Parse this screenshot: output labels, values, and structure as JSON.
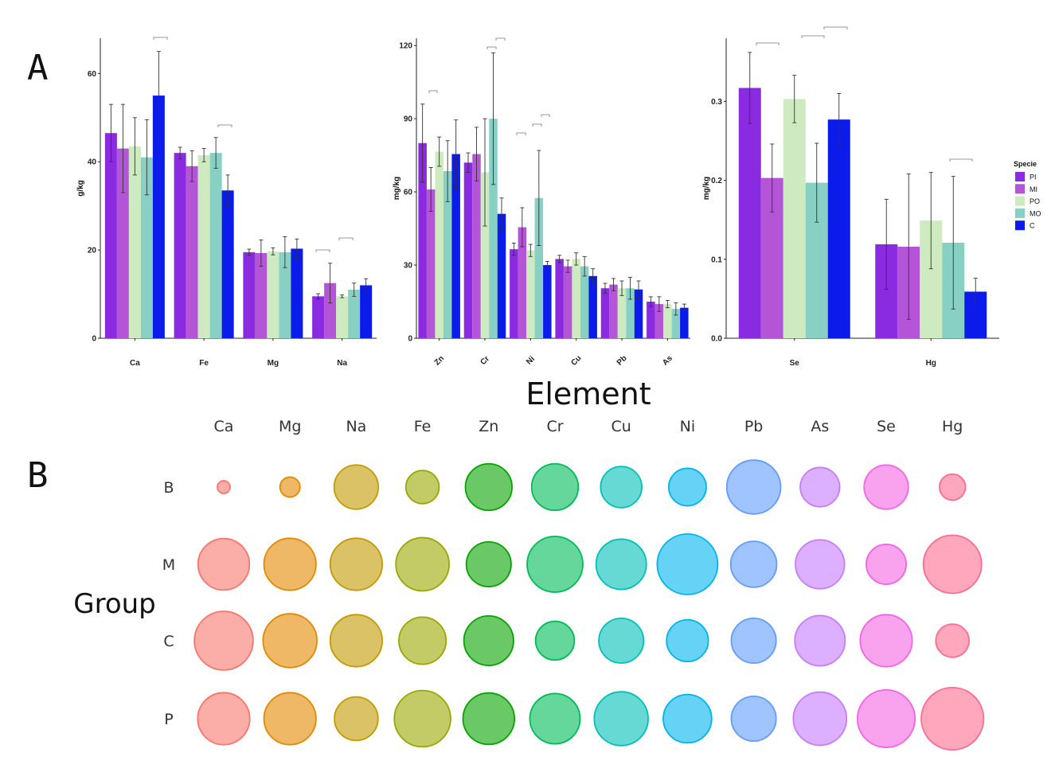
{
  "panel_a_label": "A",
  "panel_b_label": "B",
  "x_title": "Element",
  "legend": {
    "title": "Specie",
    "items": [
      {
        "name": "PI",
        "color": "#8a2be2"
      },
      {
        "name": "MI",
        "color": "#b455d8"
      },
      {
        "name": "PO",
        "color": "#cdeac0"
      },
      {
        "name": "MO",
        "color": "#88d0c4"
      },
      {
        "name": "C",
        "color": "#0a1bea"
      }
    ]
  },
  "chart_data": [
    {
      "type": "bar",
      "ylabel": "g/kg",
      "ylim": [
        0,
        68
      ],
      "yticks": [
        0,
        20,
        40,
        60
      ],
      "categories": [
        "Ca",
        "Fe",
        "Mg",
        "Na"
      ],
      "series": [
        {
          "name": "PI",
          "values": [
            46.5,
            42.0,
            19.5,
            9.5
          ],
          "errors": [
            6.5,
            1.3,
            0.7,
            0.6
          ]
        },
        {
          "name": "MI",
          "values": [
            43.0,
            39.0,
            19.3,
            12.5
          ],
          "errors": [
            10.0,
            3.5,
            3.0,
            4.5
          ]
        },
        {
          "name": "PO",
          "values": [
            43.5,
            41.5,
            19.7,
            9.5
          ],
          "errors": [
            6.5,
            1.5,
            0.8,
            0.3
          ]
        },
        {
          "name": "MO",
          "values": [
            41.0,
            42.0,
            19.5,
            11.0
          ],
          "errors": [
            8.5,
            3.5,
            3.5,
            1.5
          ]
        },
        {
          "name": "C",
          "values": [
            55.0,
            33.5,
            20.3,
            12.0
          ],
          "errors": [
            10.0,
            3.5,
            2.2,
            1.5
          ]
        }
      ]
    },
    {
      "type": "bar",
      "ylabel": "mg/kg",
      "ylim": [
        0,
        123
      ],
      "yticks": [
        0,
        30,
        60,
        90,
        120
      ],
      "categories": [
        "Zn",
        "Cr",
        "Ni",
        "Cu",
        "Pb",
        "As"
      ],
      "series": [
        {
          "name": "PI",
          "values": [
            80,
            72,
            36.5,
            32.5,
            20.5,
            15
          ],
          "errors": [
            16,
            4,
            2.5,
            1.5,
            2.0,
            2.0
          ]
        },
        {
          "name": "MI",
          "values": [
            61,
            75.5,
            45.5,
            29.5,
            22,
            14
          ],
          "errors": [
            9,
            11,
            8,
            2.5,
            2.5,
            3.0
          ]
        },
        {
          "name": "PO",
          "values": [
            76.5,
            68,
            36,
            32.5,
            20.5,
            14
          ],
          "errors": [
            6,
            22,
            2.5,
            2.5,
            3.0,
            1.5
          ]
        },
        {
          "name": "MO",
          "values": [
            68.5,
            90,
            57.5,
            29.5,
            20.5,
            12
          ],
          "errors": [
            12.5,
            27,
            19.5,
            4.0,
            4.5,
            2.5
          ]
        },
        {
          "name": "C",
          "values": [
            75.5,
            51,
            30,
            25.5,
            20,
            12.5
          ],
          "errors": [
            14,
            6.5,
            1.5,
            3.0,
            3.5,
            1.5
          ]
        }
      ]
    },
    {
      "type": "bar",
      "ylabel": "mg/kg",
      "ylim": [
        0,
        0.38
      ],
      "yticks": [
        0.0,
        0.1,
        0.2,
        0.3
      ],
      "categories": [
        "Se",
        "Hg"
      ],
      "series": [
        {
          "name": "PI",
          "values": [
            0.317,
            0.119
          ],
          "errors": [
            0.045,
            0.057
          ]
        },
        {
          "name": "MI",
          "values": [
            0.203,
            0.116
          ],
          "errors": [
            0.043,
            0.092
          ]
        },
        {
          "name": "PO",
          "values": [
            0.303,
            0.149
          ],
          "errors": [
            0.03,
            0.061
          ]
        },
        {
          "name": "MO",
          "values": [
            0.197,
            0.121
          ],
          "errors": [
            0.05,
            0.084
          ]
        },
        {
          "name": "C",
          "values": [
            0.277,
            0.059
          ],
          "errors": [
            0.033,
            0.017
          ]
        }
      ]
    },
    {
      "type": "bubble",
      "ylabel": "Group",
      "columns": [
        "Ca",
        "Mg",
        "Na",
        "Fe",
        "Zn",
        "Cr",
        "Cu",
        "Ni",
        "Pb",
        "As",
        "Se",
        "Hg"
      ],
      "rows": [
        "B",
        "M",
        "C",
        "P"
      ],
      "colors": [
        "#f8766d",
        "#e38900",
        "#c49a00",
        "#99a800",
        "#06a400",
        "#00bc56",
        "#00c0b8",
        "#00b4ef",
        "#619cff",
        "#c77cff",
        "#f564e3",
        "#ff6c91"
      ],
      "sizes": [
        [
          0.21,
          0.33,
          0.73,
          0.55,
          0.77,
          0.77,
          0.68,
          0.62,
          0.89,
          0.65,
          0.73,
          0.43
        ],
        [
          0.85,
          0.86,
          0.86,
          0.88,
          0.74,
          0.92,
          0.83,
          1.0,
          0.76,
          0.81,
          0.66,
          0.96
        ],
        [
          0.97,
          0.89,
          0.86,
          0.78,
          0.82,
          0.64,
          0.74,
          0.69,
          0.74,
          0.83,
          0.86,
          0.55
        ],
        [
          0.86,
          0.86,
          0.72,
          0.93,
          0.85,
          0.83,
          0.89,
          0.8,
          0.74,
          0.88,
          0.95,
          1.03
        ]
      ]
    }
  ]
}
